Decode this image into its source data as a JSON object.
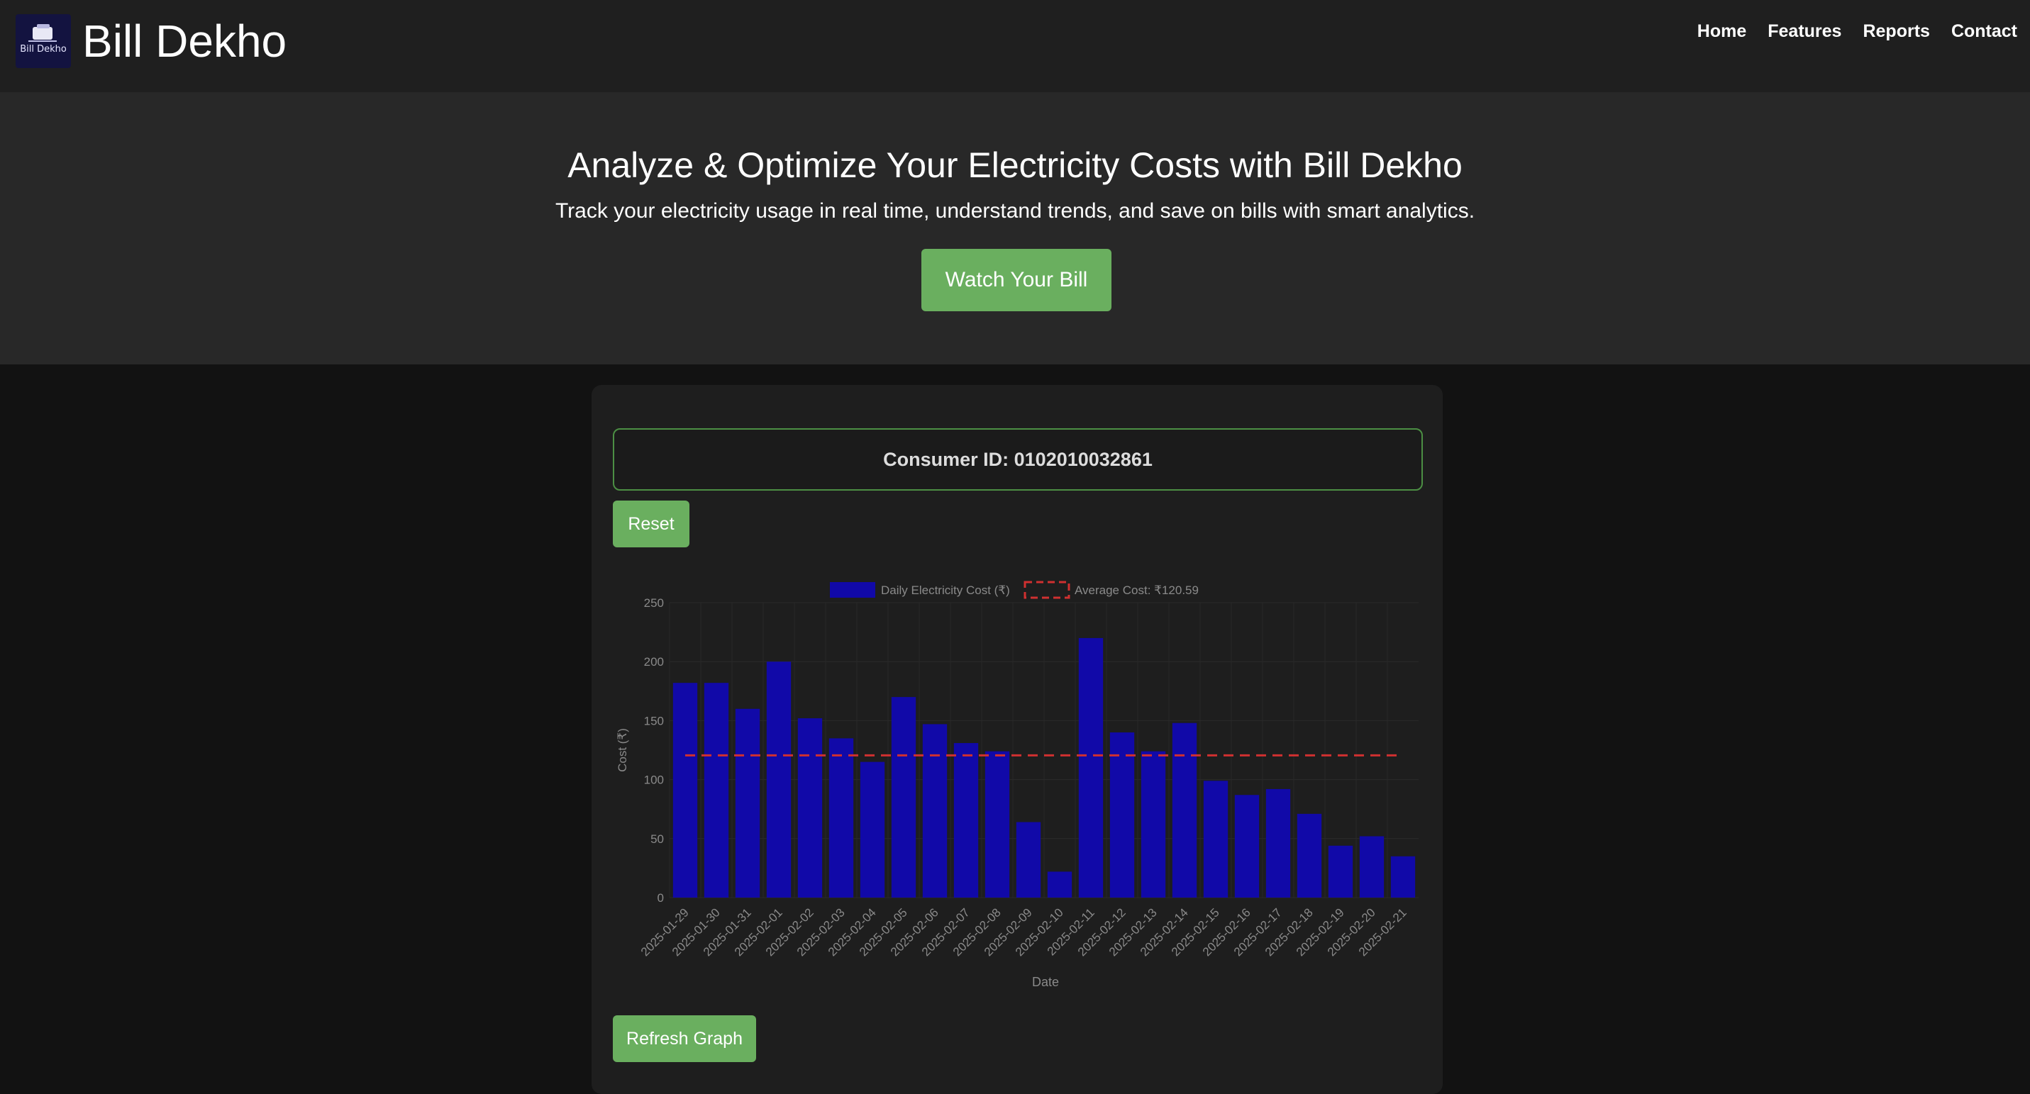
{
  "brand": {
    "name": "Bill Dekho",
    "logo_text": "Bill Dekho"
  },
  "nav": [
    "Home",
    "Features",
    "Reports",
    "Contact"
  ],
  "hero": {
    "title": "Analyze & Optimize Your Electricity Costs with Bill Dekho",
    "subtitle": "Track your electricity usage in real time, understand trends, and save on bills with smart analytics.",
    "cta": "Watch Your Bill"
  },
  "consumer": {
    "label": "Consumer ID: 0102010032861"
  },
  "buttons": {
    "reset": "Reset",
    "refresh": "Refresh Graph"
  },
  "colors": {
    "accent": "#6aaf5f",
    "bar": "#1109a8",
    "average_line": "#d03030",
    "background": "#121212"
  },
  "chart_data": {
    "type": "bar",
    "categories": [
      "2025-01-29",
      "2025-01-30",
      "2025-01-31",
      "2025-02-01",
      "2025-02-02",
      "2025-02-03",
      "2025-02-04",
      "2025-02-05",
      "2025-02-06",
      "2025-02-07",
      "2025-02-08",
      "2025-02-09",
      "2025-02-10",
      "2025-02-11",
      "2025-02-12",
      "2025-02-13",
      "2025-02-14",
      "2025-02-15",
      "2025-02-16",
      "2025-02-17",
      "2025-02-18",
      "2025-02-19",
      "2025-02-20",
      "2025-02-21"
    ],
    "series": [
      {
        "name": "Daily Electricity Cost (₹)",
        "values": [
          182,
          182,
          160,
          200,
          152,
          135,
          115,
          170,
          147,
          131,
          124,
          64,
          22,
          220,
          140,
          124,
          148,
          99,
          87,
          92,
          71,
          44,
          52,
          35
        ]
      },
      {
        "name": "Average Cost: ₹120.59",
        "type": "line",
        "dashed": true,
        "value": 120.59
      }
    ],
    "xlabel": "Date",
    "ylabel": "Cost (₹)",
    "ylim": [
      0,
      250
    ],
    "yticks": [
      "0",
      "50",
      "100",
      "150",
      "200",
      "250"
    ],
    "legend": "top",
    "grid": true
  }
}
